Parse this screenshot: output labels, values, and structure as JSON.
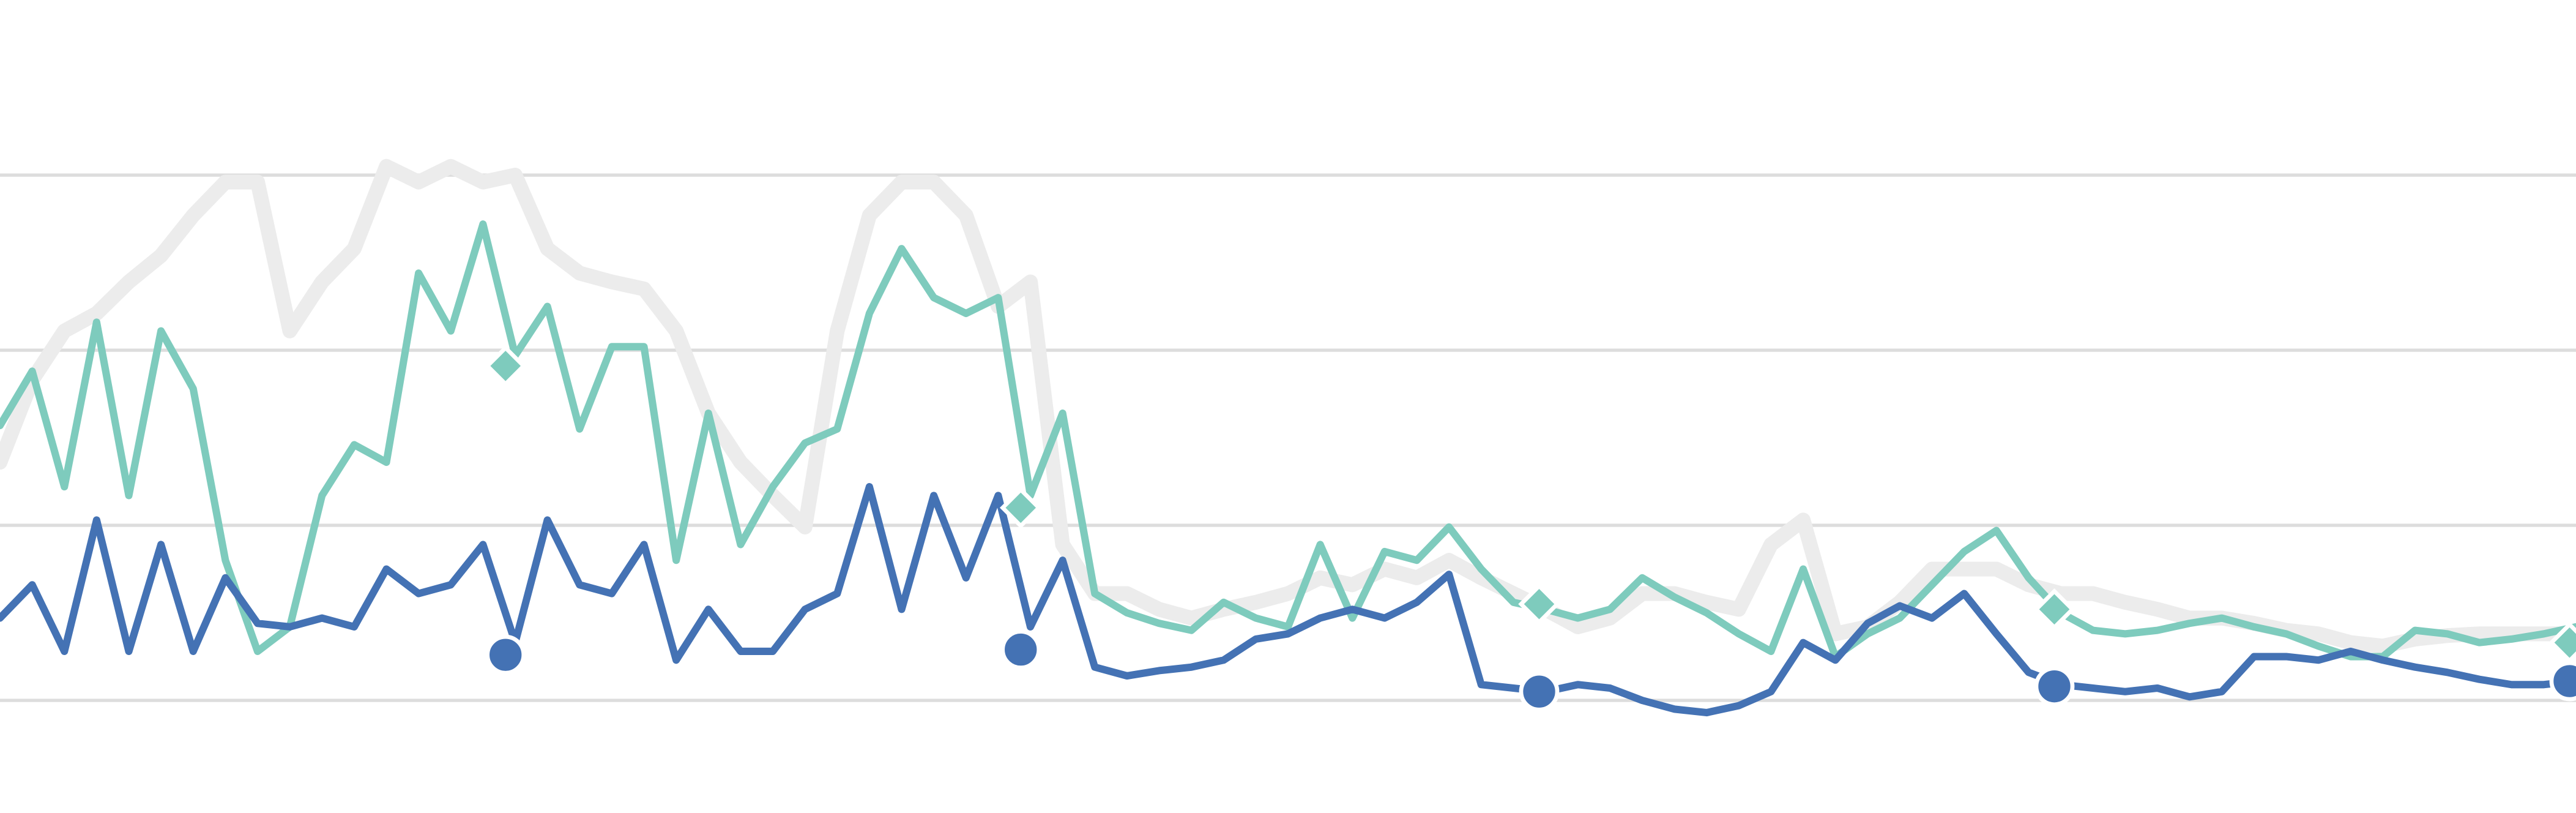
{
  "chart_data": {
    "type": "line",
    "x": [
      0,
      1,
      2,
      3,
      4,
      5,
      6,
      7,
      8,
      9,
      10,
      11,
      12,
      13,
      14,
      15,
      16,
      17,
      18,
      19,
      20,
      21,
      22,
      23,
      24,
      25,
      26,
      27,
      28,
      29,
      30,
      31,
      32,
      33,
      34,
      35,
      36,
      37,
      38,
      39,
      40,
      41,
      42,
      43,
      44,
      45,
      46,
      47,
      48,
      49,
      50,
      51,
      52,
      53,
      54,
      55,
      56,
      57,
      58,
      59,
      60,
      61,
      62,
      63,
      64,
      65,
      66,
      67,
      68,
      69,
      70,
      71,
      72,
      73,
      74,
      75,
      76,
      77,
      78,
      79,
      80
    ],
    "xlim": [
      0,
      80
    ],
    "ylim": [
      -0.6,
      4
    ],
    "yticks": [
      0,
      1,
      2,
      3
    ],
    "grid": true,
    "series": [
      {
        "color": "#ececec",
        "values": [
          1.36,
          1.83,
          2.11,
          2.21,
          2.39,
          2.54,
          2.77,
          2.96,
          2.96,
          2.11,
          2.39,
          2.58,
          3.05,
          2.96,
          3.05,
          2.96,
          3.0,
          2.58,
          2.44,
          2.39,
          2.35,
          2.11,
          1.64,
          1.36,
          1.17,
          0.99,
          2.11,
          2.77,
          2.96,
          2.96,
          2.77,
          2.25,
          2.39,
          0.89,
          0.61,
          0.61,
          0.52,
          0.47,
          0.52,
          0.56,
          0.61,
          0.7,
          0.66,
          0.75,
          0.7,
          0.8,
          0.7,
          0.61,
          0.52,
          0.42,
          0.47,
          0.61,
          0.61,
          0.56,
          0.52,
          0.89,
          1.03,
          0.38,
          0.42,
          0.56,
          0.75,
          0.75,
          0.75,
          0.66,
          0.61,
          0.61,
          0.56,
          0.52,
          0.47,
          0.47,
          0.44,
          0.4,
          0.38,
          0.33,
          0.31,
          0.35,
          0.37,
          0.38,
          0.38,
          0.38,
          0.38
        ]
      },
      {
        "color": "#7ecbbd",
        "values": [
          1.57,
          1.88,
          1.22,
          2.16,
          1.17,
          2.11,
          1.78,
          0.8,
          0.28,
          0.42,
          1.17,
          1.46,
          1.36,
          2.44,
          2.11,
          2.72,
          1.97,
          2.25,
          1.55,
          2.02,
          2.02,
          0.8,
          1.64,
          0.89,
          1.22,
          1.47,
          1.55,
          2.21,
          2.58,
          2.3,
          2.21,
          2.3,
          1.17,
          1.64,
          0.61,
          0.5,
          0.44,
          0.4,
          0.56,
          0.47,
          0.42,
          0.89,
          0.47,
          0.85,
          0.8,
          0.99,
          0.75,
          0.56,
          0.52,
          0.47,
          0.52,
          0.7,
          0.59,
          0.5,
          0.38,
          0.28,
          0.75,
          0.25,
          0.38,
          0.47,
          0.66,
          0.85,
          0.97,
          0.7,
          0.5,
          0.4,
          0.38,
          0.4,
          0.44,
          0.47,
          0.42,
          0.38,
          0.31,
          0.25,
          0.25,
          0.4,
          0.38,
          0.33,
          0.35,
          0.38,
          0.42
        ]
      },
      {
        "color": "#4472b4",
        "values": [
          0.47,
          0.66,
          0.28,
          1.03,
          0.28,
          0.89,
          0.28,
          0.7,
          0.44,
          0.42,
          0.47,
          0.42,
          0.75,
          0.61,
          0.66,
          0.89,
          0.33,
          1.03,
          0.66,
          0.61,
          0.89,
          0.23,
          0.52,
          0.28,
          0.28,
          0.52,
          0.61,
          1.22,
          0.52,
          1.17,
          0.7,
          1.17,
          0.42,
          0.8,
          0.19,
          0.14,
          0.17,
          0.19,
          0.23,
          0.35,
          0.38,
          0.47,
          0.52,
          0.47,
          0.56,
          0.72,
          0.09,
          0.07,
          0.05,
          0.09,
          0.07,
          0,
          -0.05,
          -0.07,
          -0.03,
          0.05,
          0.33,
          0.23,
          0.44,
          0.54,
          0.47,
          0.61,
          0.38,
          0.16,
          0.09,
          0.07,
          0.05,
          0.07,
          0.02,
          0.05,
          0.25,
          0.25,
          0.23,
          0.28,
          0.23,
          0.19,
          0.16,
          0.12,
          0.09,
          0.09,
          0.11
        ]
      }
    ],
    "points": [
      {
        "color": "#7ecbbd",
        "shape": "diamond",
        "x": [
          15.7,
          31.7,
          47.8,
          63.8,
          79.8
        ],
        "values": [
          1.91,
          1.1,
          0.55,
          0.52,
          0.33
        ]
      },
      {
        "color": "#4472b4",
        "shape": "circle",
        "x": [
          15.7,
          31.7,
          47.8,
          63.8,
          79.8
        ],
        "values": [
          0.26,
          0.29,
          0.05,
          0.08,
          0.11
        ]
      }
    ]
  }
}
